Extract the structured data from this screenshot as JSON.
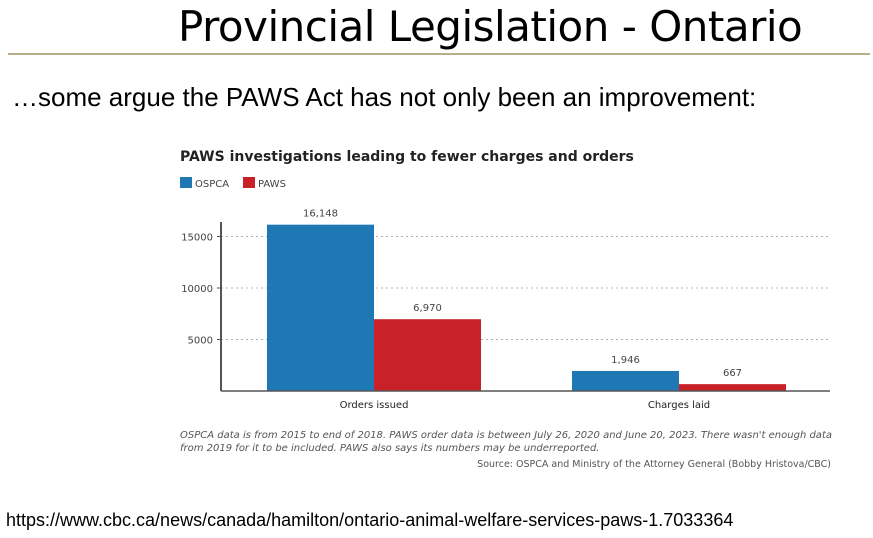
{
  "slide": {
    "title": "Provincial Legislation - Ontario",
    "subtitle": "…some argue the PAWS Act has not only been an improvement:",
    "url": "https://www.cbc.ca/news/canada/hamilton/ontario-animal-welfare-services-paws-1.7033364"
  },
  "chart_data": {
    "type": "bar",
    "title": "PAWS investigations leading to fewer charges and orders",
    "categories": [
      "Orders issued",
      "Charges laid"
    ],
    "series": [
      {
        "name": "OSPCA",
        "values": [
          16148,
          1946
        ],
        "labels": [
          "16,148",
          "1,946"
        ],
        "color": "#1f77b4"
      },
      {
        "name": "PAWS",
        "values": [
          6970,
          667
        ],
        "labels": [
          "6,970",
          "667"
        ],
        "color": "#c92128"
      }
    ],
    "yticks": [
      5000,
      10000,
      15000
    ],
    "ylim": [
      0,
      17000
    ],
    "grid": "dotted horizontal",
    "legend": "top-left",
    "note": "OSPCA data is from 2015 to end of 2018. PAWS order data is between July 26, 2020 and June 20, 2023. There wasn't enough data from 2019 for it to be included. PAWS also says its numbers may be underreported.",
    "source": "Source: OSPCA and Ministry of the Attorney General (Bobby Hristova/CBC)"
  }
}
